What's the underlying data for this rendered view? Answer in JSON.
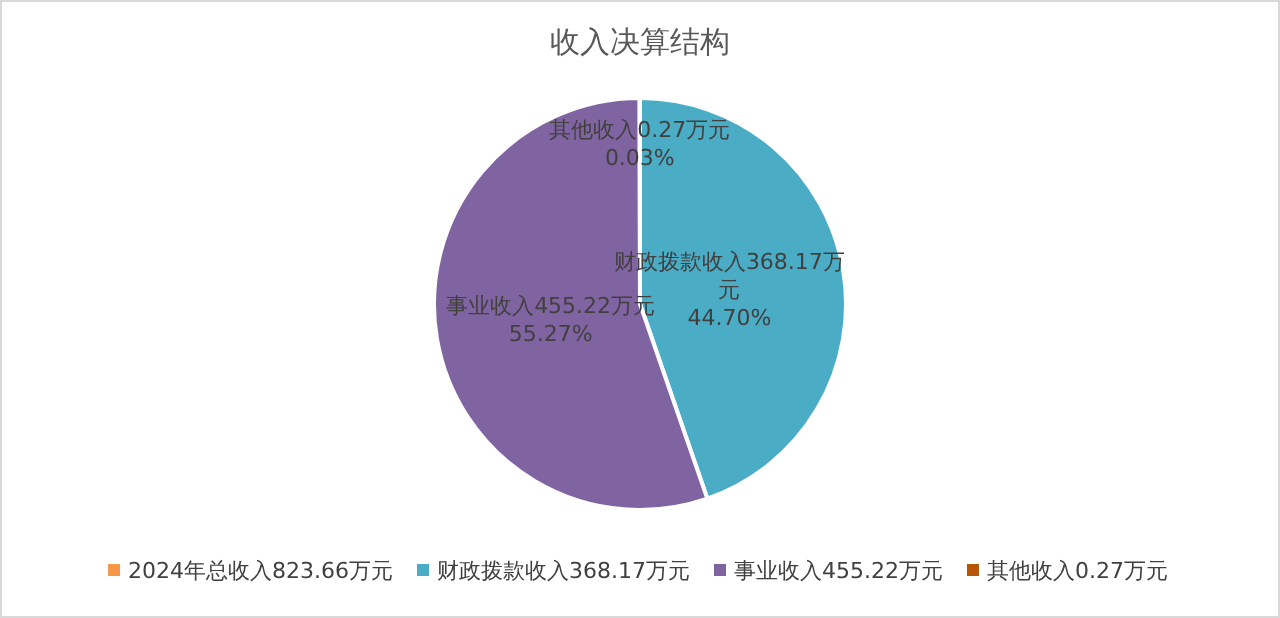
{
  "chart_data": {
    "type": "pie",
    "title": "收入决算结构",
    "categories": [
      "2024年总收入823.66万元",
      "财政拨款收入368.17万元",
      "事业收入455.22万元",
      "其他收入0.27万元"
    ],
    "values": [
      null,
      44.7,
      55.27,
      0.03
    ],
    "colors": [
      "#f79646",
      "#4bacc6",
      "#8064a2",
      "#b65708"
    ],
    "value_labels": [
      null,
      "44.70%",
      "55.27%",
      "0.03%"
    ],
    "legend": "bottom"
  }
}
